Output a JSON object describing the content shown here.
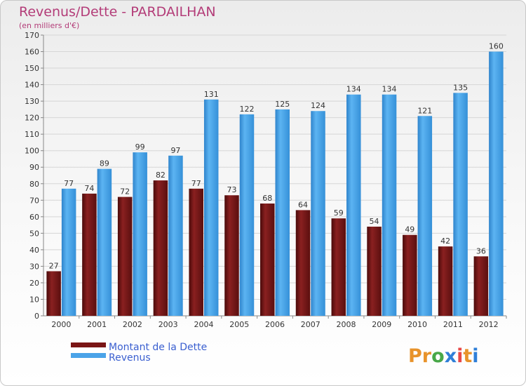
{
  "chart_data": {
    "type": "bar",
    "title": "Revenus/Dette - PARDAILHAN",
    "subtitle": "(en milliers d'€)",
    "categories": [
      "2000",
      "2001",
      "2002",
      "2003",
      "2004",
      "2005",
      "2006",
      "2007",
      "2008",
      "2009",
      "2010",
      "2011",
      "2012"
    ],
    "series": [
      {
        "name": "Montant de la Dette",
        "color": "#7a1515",
        "values": [
          27,
          74,
          72,
          82,
          77,
          73,
          68,
          64,
          59,
          54,
          49,
          42,
          36
        ]
      },
      {
        "name": "Revenus",
        "color": "#4aa3e8",
        "values": [
          77,
          89,
          99,
          97,
          131,
          122,
          125,
          124,
          134,
          134,
          121,
          135,
          160
        ]
      }
    ],
    "ylim": [
      0,
      170
    ],
    "ytick_step": 10,
    "grid": true,
    "legend_position": "bottom-left"
  },
  "logo": {
    "text": "Proxiti",
    "colors": [
      "#e8932b",
      "#e8932b",
      "#48a848",
      "#2f7fd8",
      "#e84848",
      "#e8932b",
      "#2f7fd8"
    ]
  }
}
